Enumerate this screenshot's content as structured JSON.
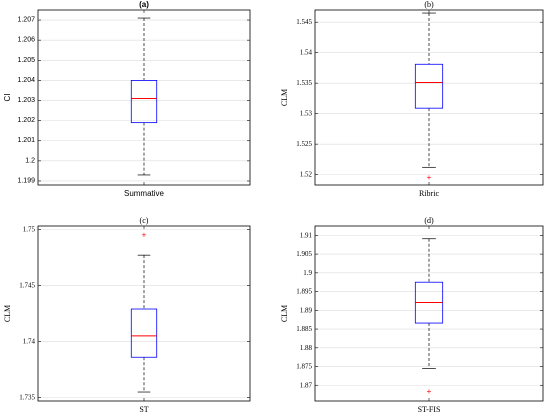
{
  "colors": {
    "box": "#0000ff",
    "median": "#ff0000",
    "outlier": "#ff0000",
    "whisker": "#000000"
  },
  "chart_data": [
    {
      "type": "box",
      "title": "(a)",
      "ylabel": "CI",
      "category": "Summative",
      "font": "sans",
      "title_bold": true,
      "ylim": [
        1.1988,
        1.2075
      ],
      "yticks": [
        1.199,
        1.2,
        1.201,
        1.202,
        1.203,
        1.204,
        1.205,
        1.206,
        1.207
      ],
      "ytick_labels": [
        "1.199",
        "1.2",
        "1.201",
        "1.202",
        "1.203",
        "1.204",
        "1.205",
        "1.206",
        "1.207"
      ],
      "grid": true,
      "min": 1.1993,
      "q1": 1.2019,
      "median": 1.2031,
      "q3": 1.204,
      "max": 1.2071,
      "outliers": []
    },
    {
      "type": "box",
      "title": "(b)",
      "ylabel": "CLM",
      "category": "Ribric",
      "font": "serif",
      "title_bold": false,
      "ylim": [
        1.5183,
        1.547
      ],
      "yticks": [
        1.52,
        1.525,
        1.53,
        1.535,
        1.54,
        1.545
      ],
      "ytick_labels": [
        "1.52",
        "1.525",
        "1.53",
        "1.535",
        "1.54",
        "1.545"
      ],
      "grid": true,
      "min": 1.5212,
      "q1": 1.5309,
      "median": 1.5351,
      "q3": 1.5381,
      "max": 1.5465,
      "outliers": [
        1.5195
      ]
    },
    {
      "type": "box",
      "title": "(c)",
      "ylabel": "CLM",
      "category": "ST",
      "font": "serif",
      "title_bold": false,
      "ylim": [
        1.7347,
        1.7503
      ],
      "yticks": [
        1.735,
        1.74,
        1.745,
        1.75
      ],
      "ytick_labels": [
        "1.735",
        "1.74",
        "1.745",
        "1.75"
      ],
      "grid": true,
      "min": 1.7355,
      "q1": 1.7386,
      "median": 1.7405,
      "q3": 1.7429,
      "max": 1.7477,
      "outliers": [
        1.7495
      ]
    },
    {
      "type": "box",
      "title": "(d)",
      "ylabel": "CLM",
      "category": "ST-FIS",
      "font": "serif",
      "title_bold": false,
      "ylim": [
        1.8658,
        1.9125
      ],
      "yticks": [
        1.87,
        1.875,
        1.88,
        1.885,
        1.89,
        1.895,
        1.9,
        1.905,
        1.91
      ],
      "ytick_labels": [
        "1.87",
        "1.875",
        "1.88",
        "1.885",
        "1.89",
        "1.895",
        "1.9",
        "1.905",
        "1.91"
      ],
      "grid": true,
      "min": 1.8745,
      "q1": 1.8866,
      "median": 1.8921,
      "q3": 1.8975,
      "max": 1.9091,
      "outliers": [
        1.8683
      ]
    }
  ]
}
